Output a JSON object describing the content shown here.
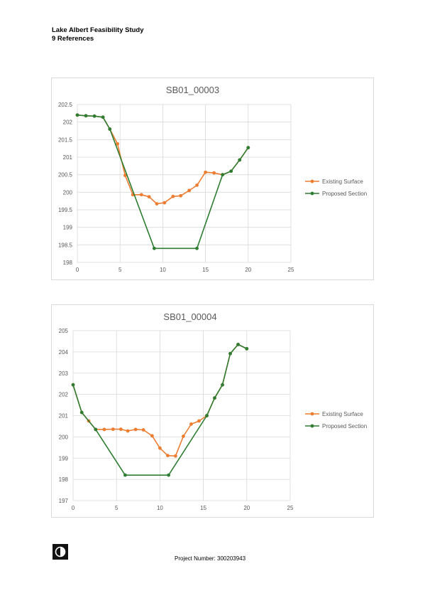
{
  "header": {
    "line1": "Lake Albert Feasibility Study",
    "line2": "9 References"
  },
  "footer": {
    "project_number": "Project Number: 300203943"
  },
  "colors": {
    "existing": "#ED7D31",
    "proposed": "#2E7D32",
    "grid": "#d9d9d9",
    "text": "#595959"
  },
  "chart_data": [
    {
      "type": "line",
      "title": "SB01_00003",
      "xlim": [
        0,
        25
      ],
      "xticks": [
        0,
        5,
        10,
        15,
        20,
        25
      ],
      "ylim": [
        198,
        202.5
      ],
      "yticks": [
        198,
        198.5,
        199,
        199.5,
        200,
        200.5,
        201,
        201.5,
        202,
        202.5
      ],
      "ytick_labels": [
        "198",
        "198.5",
        "199",
        "199.5",
        "200",
        "200.5",
        "201",
        "201.5",
        "202",
        "202.5"
      ],
      "legend_position": "right",
      "series": [
        {
          "name": "Existing Surface",
          "color": "#ED7D31",
          "x": [
            0,
            1,
            2,
            3,
            3.8,
            4.7,
            5.6,
            6.5,
            7.5,
            8.4,
            9.3,
            10.2,
            11.2,
            12.1,
            13.1,
            14,
            15,
            16,
            17,
            18,
            19,
            20
          ],
          "y": [
            202.2,
            202.18,
            202.17,
            202.14,
            201.8,
            201.38,
            200.48,
            199.93,
            199.93,
            199.87,
            199.67,
            199.7,
            199.88,
            199.9,
            200.05,
            200.2,
            200.57,
            200.55,
            200.5,
            200.6,
            200.92,
            201.27
          ]
        },
        {
          "name": "Proposed Section",
          "color": "#2E7D32",
          "x": [
            0,
            1,
            2,
            3,
            3.8,
            9,
            14,
            17,
            18,
            19,
            20
          ],
          "y": [
            202.2,
            202.18,
            202.17,
            202.14,
            201.8,
            198.4,
            198.4,
            200.5,
            200.6,
            200.92,
            201.27
          ]
        }
      ]
    },
    {
      "type": "line",
      "title": "SB01_00004",
      "xlim": [
        0,
        25
      ],
      "xticks": [
        0,
        5,
        10,
        15,
        20,
        25
      ],
      "ylim": [
        197,
        205
      ],
      "yticks": [
        197,
        198,
        199,
        200,
        201,
        202,
        203,
        204,
        205
      ],
      "ytick_labels": [
        "197",
        "198",
        "199",
        "200",
        "201",
        "202",
        "203",
        "204",
        "205"
      ],
      "legend_position": "right",
      "series": [
        {
          "name": "Existing Surface",
          "color": "#ED7D31",
          "x": [
            0,
            1,
            1.8,
            2.6,
            3.6,
            4.6,
            5.5,
            6.3,
            7.2,
            8.1,
            9.1,
            10,
            10.9,
            11.8,
            12.7,
            13.6,
            14.5,
            15.4,
            16.3,
            17.2,
            18.1,
            19,
            20
          ],
          "y": [
            202.45,
            201.15,
            200.75,
            200.35,
            200.35,
            200.36,
            200.36,
            200.28,
            200.35,
            200.33,
            200.05,
            199.47,
            199.12,
            199.1,
            200.03,
            200.6,
            200.75,
            201.0,
            201.83,
            202.45,
            203.92,
            204.35,
            204.15
          ]
        },
        {
          "name": "Proposed Section",
          "color": "#2E7D32",
          "x": [
            0,
            1,
            2.6,
            6,
            11,
            15.4,
            16.3,
            17.2,
            18.1,
            19,
            20
          ],
          "y": [
            202.45,
            201.15,
            200.35,
            198.2,
            198.2,
            201.0,
            201.83,
            202.45,
            203.92,
            204.35,
            204.15
          ]
        }
      ]
    }
  ]
}
